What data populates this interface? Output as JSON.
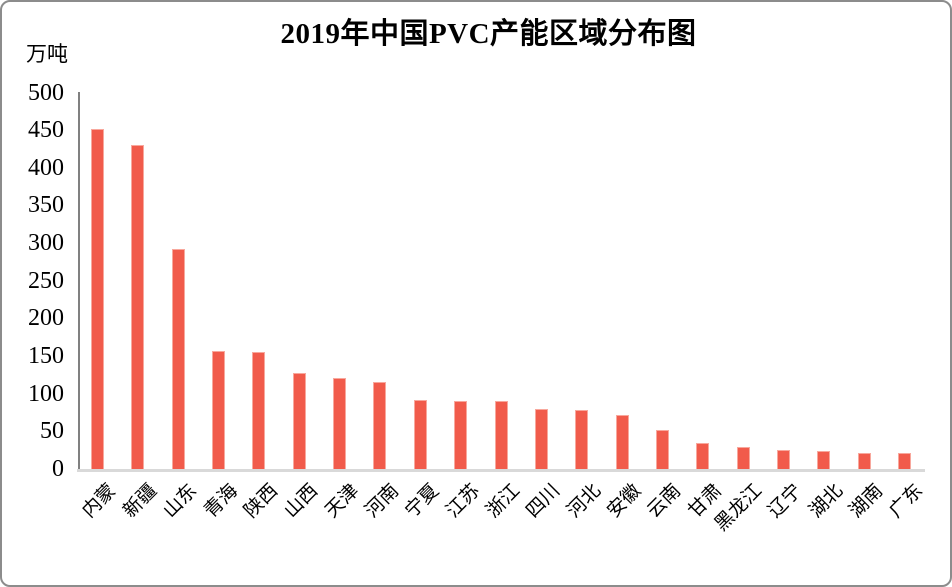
{
  "chart_data": {
    "type": "bar",
    "title": "2019年中国PVC产能区域分布图",
    "ylabel_unit": "万吨",
    "categories": [
      "内蒙",
      "新疆",
      "山东",
      "青海",
      "陕西",
      "山西",
      "天津",
      "河南",
      "宁夏",
      "江苏",
      "浙江",
      "四川",
      "河北",
      "安徽",
      "云南",
      "甘肃",
      "黑龙江",
      "辽宁",
      "湖北",
      "湖南",
      "广东"
    ],
    "values": [
      452,
      430,
      292,
      157,
      155,
      127,
      121,
      116,
      92,
      90,
      90,
      80,
      78,
      72,
      52,
      35,
      29,
      25,
      24,
      21,
      21
    ],
    "ylim": [
      0,
      500
    ],
    "ytick_step": 50,
    "yticks": [
      500,
      450,
      400,
      350,
      300,
      250,
      200,
      150,
      100,
      50,
      0
    ],
    "grid": false,
    "legend": null,
    "bar_count": 21,
    "colors": {
      "bar_fill": "#F15B4B",
      "bar_edge": "#F8A89D",
      "y_axis_line": "#808080",
      "x_axis_line": "#D9D9D9",
      "text": "#000000",
      "frame_border": "#8C8C8C",
      "background": "#FFFFFF"
    }
  }
}
